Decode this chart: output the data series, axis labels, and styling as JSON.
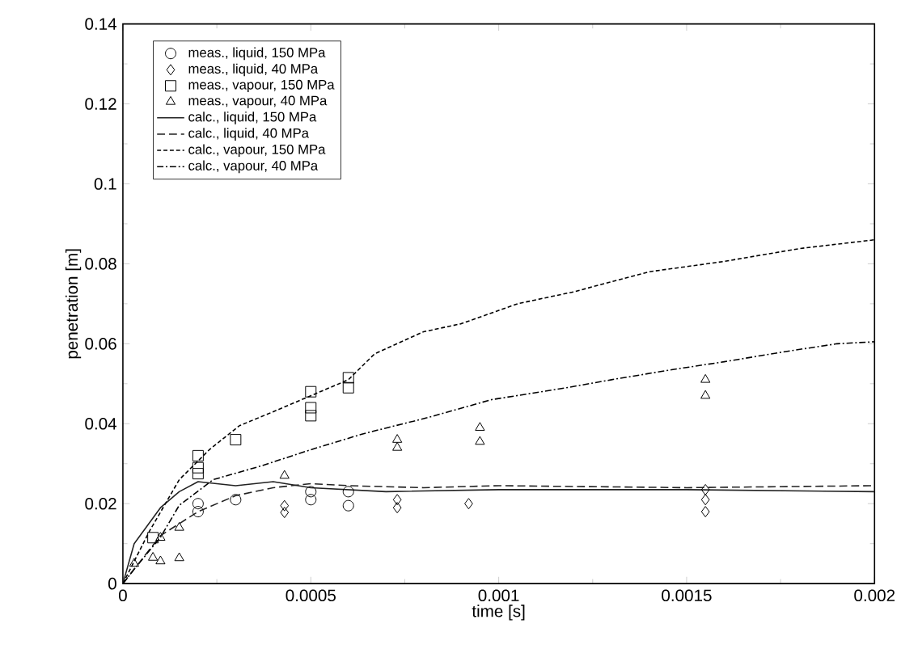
{
  "chart_data": {
    "type": "line",
    "xlabel": "time [s]",
    "ylabel": "penetration [m]",
    "xlim": [
      0,
      0.002
    ],
    "ylim": [
      0,
      0.14
    ],
    "xticks": [
      0,
      0.0005,
      0.001,
      0.0015,
      0.002
    ],
    "yticks": [
      0,
      0.02,
      0.04,
      0.06,
      0.08,
      0.1,
      0.12,
      0.14
    ],
    "grid": false,
    "legend": "top left",
    "series": [
      {
        "name": "meas., liquid, 150 MPa",
        "type": "scatter",
        "marker": "circle",
        "color": "#000000",
        "x": [
          0.0002,
          0.0002,
          0.0003,
          0.0005,
          0.0005,
          0.0006,
          0.0006
        ],
        "values": [
          0.02,
          0.018,
          0.021,
          0.023,
          0.021,
          0.023,
          0.0195
        ]
      },
      {
        "name": "meas., liquid, 40 MPa",
        "type": "scatter",
        "marker": "diamond",
        "color": "#000000",
        "x": [
          0.00043,
          0.00043,
          0.00073,
          0.00073,
          0.00092,
          0.00155,
          0.00155,
          0.00155
        ],
        "values": [
          0.0195,
          0.0178,
          0.021,
          0.019,
          0.02,
          0.0235,
          0.021,
          0.018
        ]
      },
      {
        "name": "meas., vapour, 150 MPa",
        "type": "scatter",
        "marker": "square",
        "color": "#000000",
        "x": [
          8e-05,
          0.0002,
          0.0002,
          0.0002,
          0.0003,
          0.0005,
          0.0005,
          0.0005,
          0.0006,
          0.0006
        ],
        "values": [
          0.0115,
          0.032,
          0.029,
          0.0275,
          0.036,
          0.048,
          0.044,
          0.042,
          0.0515,
          0.049
        ]
      },
      {
        "name": "meas., vapour, 40 MPa",
        "type": "scatter",
        "marker": "triangle",
        "color": "#000000",
        "x": [
          3e-05,
          8e-05,
          0.0001,
          0.0001,
          0.00015,
          0.00015,
          0.00043,
          0.00073,
          0.00073,
          0.00095,
          0.00095,
          0.00155,
          0.00155
        ],
        "values": [
          0.005,
          0.0065,
          0.0115,
          0.0056,
          0.014,
          0.0064,
          0.027,
          0.036,
          0.034,
          0.039,
          0.0355,
          0.051,
          0.047
        ]
      },
      {
        "name": "calc., liquid, 150 MPa",
        "line_style": "solid",
        "color": "#222222",
        "x": [
          0,
          3e-05,
          0.0001,
          0.00015,
          0.0002,
          0.00025,
          0.0003,
          0.0004,
          0.0005,
          0.0007,
          0.001,
          0.0015,
          0.002
        ],
        "values": [
          0,
          0.01,
          0.019,
          0.023,
          0.0255,
          0.025,
          0.0245,
          0.0255,
          0.024,
          0.023,
          0.0235,
          0.0235,
          0.023
        ]
      },
      {
        "name": "calc., liquid, 40 MPa",
        "line_style": "dashed",
        "color": "#222222",
        "x": [
          0,
          0.0001,
          0.0002,
          0.0003,
          0.0004,
          0.0005,
          0.0006,
          0.0008,
          0.001,
          0.0015,
          0.002
        ],
        "values": [
          0,
          0.012,
          0.018,
          0.022,
          0.024,
          0.025,
          0.0245,
          0.024,
          0.0245,
          0.024,
          0.0245
        ]
      },
      {
        "name": "calc., vapour, 150 MPa",
        "line_style": "dotted",
        "color": "#000000",
        "x": [
          0,
          7e-05,
          0.00015,
          0.00023,
          0.00031,
          0.0004,
          0.0005,
          0.0006,
          0.00067,
          0.0008,
          0.0009,
          0.00105,
          0.0012,
          0.0013,
          0.0014,
          0.0016,
          0.0018,
          0.002
        ],
        "values": [
          0,
          0.013,
          0.026,
          0.0335,
          0.0395,
          0.043,
          0.047,
          0.051,
          0.0575,
          0.063,
          0.065,
          0.07,
          0.073,
          0.0755,
          0.078,
          0.0806,
          0.0838,
          0.086
        ]
      },
      {
        "name": "calc., vapour, 40 MPa",
        "line_style": "dashdot",
        "color": "#000000",
        "x": [
          0,
          3e-05,
          0.0001,
          0.00015,
          0.00024,
          0.00037,
          0.0005,
          0.00064,
          0.00081,
          0.00098,
          0.00118,
          0.0013,
          0.00146,
          0.0016,
          0.00176,
          0.0019,
          0.002
        ],
        "values": [
          0,
          0.0036,
          0.0116,
          0.0196,
          0.026,
          0.0295,
          0.0335,
          0.0375,
          0.0415,
          0.046,
          0.049,
          0.051,
          0.0535,
          0.0555,
          0.058,
          0.06,
          0.0605
        ]
      }
    ]
  }
}
